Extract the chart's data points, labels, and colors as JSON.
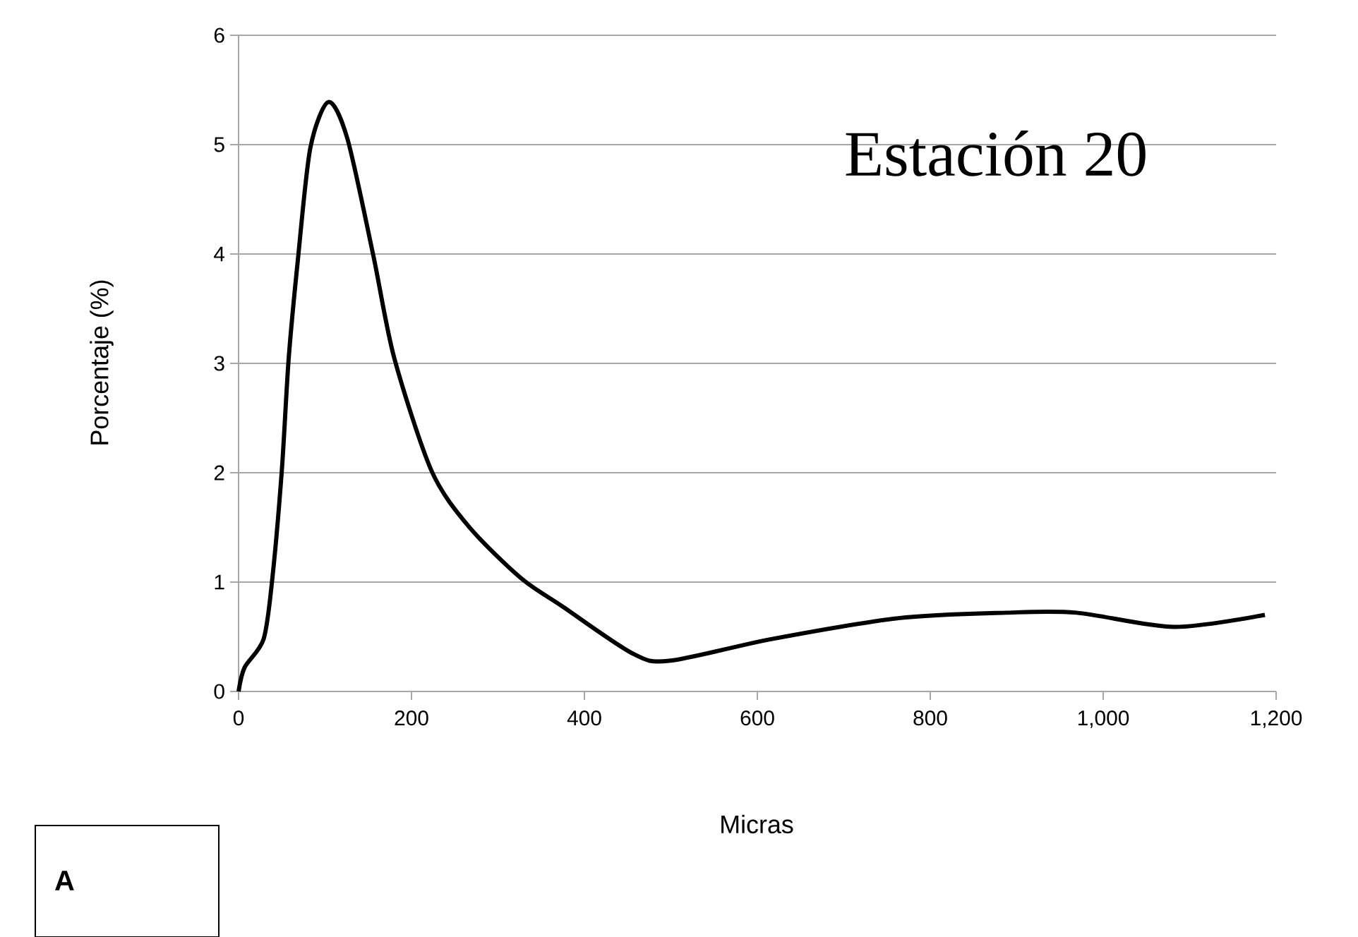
{
  "chart_data": {
    "type": "line",
    "title": "Estación 20",
    "xlabel": "Micras",
    "ylabel": "Porcentaje (%)",
    "annotations": [
      "A"
    ],
    "series": [
      {
        "color": "#000000",
        "x": [
          0,
          7,
          29,
          39,
          50,
          58,
          69,
          83,
          104,
          126,
          156,
          180,
          223,
          266,
          326,
          374,
          455,
          498,
          617,
          763,
          888,
          969,
          1082,
          1187
        ],
        "values": [
          0,
          0.22,
          0.48,
          1.03,
          2.02,
          3.05,
          3.98,
          4.97,
          5.39,
          5.05,
          3.98,
          3.05,
          2.02,
          1.51,
          1.04,
          0.78,
          0.35,
          0.28,
          0.48,
          0.67,
          0.72,
          0.72,
          0.59,
          0.7
        ]
      }
    ],
    "xlim": [
      0,
      1200
    ],
    "ylim": [
      0,
      6
    ],
    "xticks": [
      0,
      200,
      400,
      600,
      800,
      {
        "value": 1000,
        "label": "1,000"
      },
      {
        "value": 1200,
        "label": "1,200"
      }
    ],
    "yticks": [
      0,
      1,
      2,
      3,
      4,
      5,
      6
    ],
    "grid": "y",
    "marker": "none",
    "line_style": "solid"
  }
}
